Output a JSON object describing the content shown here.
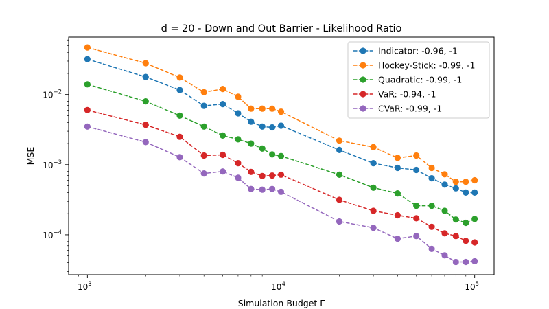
{
  "chart_data": {
    "type": "line",
    "title": "d = 20 - Down and Out Barrier - Likelihood Ratio",
    "xlabel": "Simulation Budget Γ",
    "ylabel": "MSE",
    "xscale": "log",
    "yscale": "log",
    "xlim": [
      800,
      126000
    ],
    "ylim": [
      2.7e-05,
      0.066
    ],
    "grid": false,
    "legend_position": "top-right",
    "line_style": "dashed",
    "marker": "circle",
    "x_ticks": [
      {
        "base": "10",
        "exp": "3"
      },
      {
        "base": "10",
        "exp": "4"
      },
      {
        "base": "10",
        "exp": "5"
      }
    ],
    "y_ticks": [
      {
        "base": "10",
        "exp": "−4"
      },
      {
        "base": "10",
        "exp": "−3"
      },
      {
        "base": "10",
        "exp": "−2"
      }
    ],
    "x": [
      1000,
      2000,
      3000,
      4000,
      5000,
      6000,
      7000,
      8000,
      9000,
      10000,
      20000,
      30000,
      40000,
      50000,
      60000,
      70000,
      80000,
      90000,
      100000
    ],
    "series": [
      {
        "name": "Indicator: -0.96, -1",
        "color": "#1f77b4",
        "values": [
          0.032,
          0.0178,
          0.0116,
          0.0069,
          0.0073,
          0.0054,
          0.0041,
          0.0035,
          0.0034,
          0.0036,
          0.00162,
          0.00105,
          0.0009,
          0.00084,
          0.00064,
          0.00052,
          0.00046,
          0.0004,
          0.0004
        ]
      },
      {
        "name": "Hockey-Stick: -0.99, -1",
        "color": "#ff7f0e",
        "values": [
          0.047,
          0.028,
          0.0175,
          0.0108,
          0.012,
          0.0093,
          0.0063,
          0.0063,
          0.0063,
          0.0057,
          0.0022,
          0.00178,
          0.00125,
          0.00135,
          0.0009,
          0.00073,
          0.00057,
          0.00057,
          0.0006
        ]
      },
      {
        "name": "Quadratic: -0.99, -1",
        "color": "#2ca02c",
        "values": [
          0.014,
          0.008,
          0.005,
          0.0035,
          0.0026,
          0.0023,
          0.002,
          0.0017,
          0.0014,
          0.00133,
          0.00072,
          0.00047,
          0.00039,
          0.00026,
          0.00026,
          0.00022,
          0.000165,
          0.000148,
          0.000168
        ]
      },
      {
        "name": "VaR: -0.94, -1",
        "color": "#d62728",
        "values": [
          0.006,
          0.0037,
          0.0025,
          0.00135,
          0.00138,
          0.00105,
          0.00079,
          0.00069,
          0.0007,
          0.00072,
          0.000315,
          0.00022,
          0.00019,
          0.000172,
          0.00013,
          0.000105,
          9.6e-05,
          8.2e-05,
          7.8e-05
        ]
      },
      {
        "name": "CVaR: -0.99, -1",
        "color": "#9467bd",
        "values": [
          0.0035,
          0.0021,
          0.00128,
          0.00075,
          0.0008,
          0.00065,
          0.00045,
          0.00044,
          0.00045,
          0.00041,
          0.000155,
          0.000126,
          8.8e-05,
          9.6e-05,
          6.3e-05,
          5.1e-05,
          4.1e-05,
          4.1e-05,
          4.2e-05
        ]
      }
    ]
  }
}
